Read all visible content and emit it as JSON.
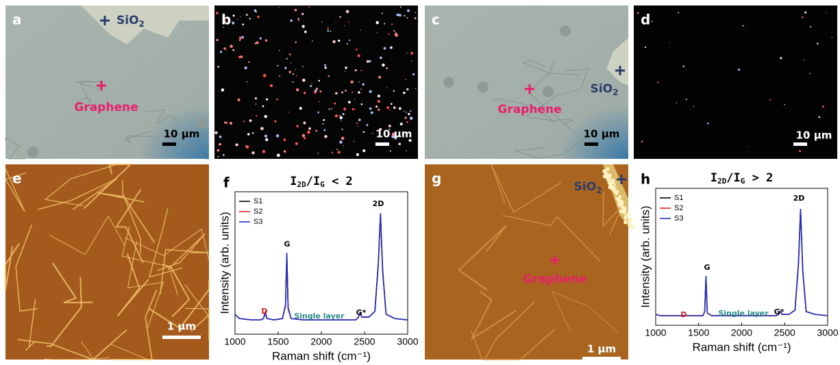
{
  "panels": {
    "a": {
      "label": "a",
      "sio2": {
        "text": "SiO",
        "sub": "2"
      },
      "graphene": "Graphene",
      "scale": "10 μm"
    },
    "b": {
      "label": "b",
      "scale": "10 μm"
    },
    "c": {
      "label": "c",
      "sio2": {
        "text": "SiO",
        "sub": "2"
      },
      "graphene": "Graphene",
      "scale": "10 μm"
    },
    "d": {
      "label": "d",
      "scale": "10 μm"
    },
    "e": {
      "label": "e",
      "scale": "1 μm"
    },
    "g": {
      "label": "g",
      "sio2": {
        "text": "SiO",
        "sub": "2"
      },
      "graphene": "Graphene",
      "scale": "1 μm"
    }
  },
  "chart_data": [
    {
      "type": "line",
      "label": "f",
      "title": [
        "I",
        "2D",
        "/I",
        "G",
        "  < 2"
      ],
      "xlabel": "Raman shift (cm⁻¹)",
      "ylabel": "Intensity (arb. units)",
      "x": [
        1000,
        1050,
        1200,
        1300,
        1330,
        1350,
        1370,
        1450,
        1550,
        1585,
        1600,
        1615,
        1650,
        1800,
        2000,
        2200,
        2400,
        2430,
        2450,
        2470,
        2550,
        2620,
        2660,
        2685,
        2710,
        2750,
        2850,
        3000
      ],
      "series": [
        {
          "name": "S1",
          "color": "#000000",
          "values": [
            14,
            11,
            10,
            10,
            11,
            15,
            11,
            10,
            11,
            20,
            56,
            18,
            11,
            10,
            10,
            10,
            10,
            12,
            15,
            12,
            12,
            16,
            49,
            84,
            44,
            14,
            11,
            10
          ]
        },
        {
          "name": "S2",
          "color": "#e02020",
          "values": [
            14,
            11,
            10,
            10,
            11,
            16,
            11,
            10,
            11,
            21,
            57,
            19,
            11,
            10,
            10,
            10,
            10,
            12,
            15,
            12,
            12,
            16,
            50,
            84,
            46,
            14,
            11,
            10
          ]
        },
        {
          "name": "S3",
          "color": "#2030c0",
          "values": [
            14,
            11,
            10,
            10,
            11,
            15,
            11,
            10,
            11,
            20,
            57,
            18,
            11,
            10,
            10,
            10,
            10,
            12,
            15,
            12,
            12,
            16,
            50,
            85,
            45,
            14,
            11,
            10
          ]
        }
      ],
      "annotations": [
        "D",
        "G",
        "G*",
        "2D",
        "Single layer"
      ],
      "xlim": [
        1000,
        3000
      ],
      "xticks": [
        1000,
        1500,
        2000,
        2500,
        3000
      ],
      "ylim": [
        0,
        100
      ]
    },
    {
      "type": "line",
      "label": "h",
      "title": [
        "I",
        "2D",
        "/I",
        "G",
        "  > 2"
      ],
      "xlabel": "Raman shift (cm⁻¹)",
      "ylabel": "Intensity (arb. units)",
      "x": [
        1000,
        1050,
        1200,
        1300,
        1330,
        1350,
        1370,
        1450,
        1550,
        1570,
        1585,
        1600,
        1650,
        1800,
        2000,
        2200,
        2400,
        2430,
        2450,
        2470,
        2550,
        2620,
        2660,
        2685,
        2710,
        2750,
        2850,
        3000
      ],
      "series": [
        {
          "name": "S1",
          "color": "#000000",
          "values": [
            8,
            7,
            7,
            7,
            7,
            7,
            7,
            7,
            7,
            10,
            36,
            9,
            7,
            7,
            7,
            7,
            7,
            8,
            10,
            8,
            8,
            11,
            44,
            84,
            40,
            10,
            8,
            7
          ]
        },
        {
          "name": "S2",
          "color": "#e02020",
          "values": [
            8,
            7,
            7,
            7,
            7,
            7,
            7,
            7,
            7,
            10,
            35,
            9,
            7,
            7,
            7,
            7,
            7,
            8,
            10,
            8,
            8,
            11,
            45,
            85,
            41,
            10,
            8,
            7
          ]
        },
        {
          "name": "S3",
          "color": "#2030c0",
          "values": [
            8,
            7,
            7,
            7,
            7,
            7,
            7,
            7,
            7,
            10,
            36,
            9,
            7,
            7,
            7,
            7,
            7,
            8,
            10,
            8,
            8,
            11,
            45,
            85,
            40,
            10,
            8,
            7
          ]
        }
      ],
      "annotations": [
        "D",
        "G",
        "G*",
        "2D",
        "Single layer"
      ],
      "xlim": [
        1000,
        3000
      ],
      "xticks": [
        1000,
        1500,
        2000,
        2500,
        3000
      ],
      "ylim": [
        0,
        100
      ]
    }
  ]
}
